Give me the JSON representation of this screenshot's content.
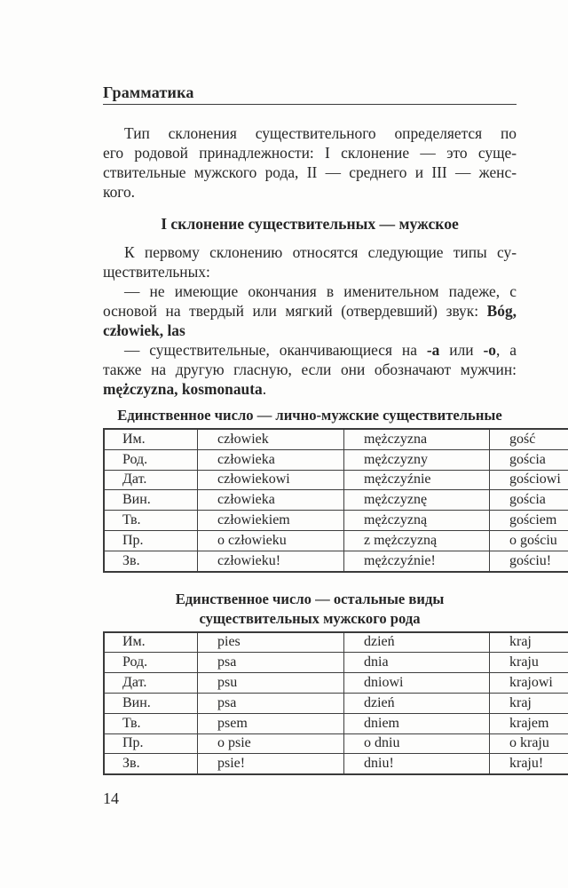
{
  "running_head": "Грамматика",
  "page_number": "14",
  "body": {
    "intro": {
      "indent": true,
      "lines": [
        [
          {
            "t": "Тип склонения существительного определяется по",
            "b": false
          }
        ],
        [
          {
            "t": "его родовой принадлежности: I склонение — это суще-",
            "b": false
          }
        ],
        [
          {
            "t": "ствительные мужского рода, II — среднего и III — женс-",
            "b": false
          }
        ],
        [
          {
            "t": "кого.",
            "b": false
          }
        ]
      ]
    },
    "section_heading": "I склонение существительных — мужское",
    "paragraphs": [
      {
        "indent": true,
        "lines": [
          [
            {
              "t": "К первому склонению относятся следующие типы су-",
              "b": false
            }
          ],
          [
            {
              "t": "ществительных:",
              "b": false
            }
          ]
        ]
      },
      {
        "indent": true,
        "lines": [
          [
            {
              "t": "— не имеющие окончания в именительном падеже, с",
              "b": false
            }
          ],
          [
            {
              "t": "основой на твердый или мягкий (отвердевший) звук: ",
              "b": false
            },
            {
              "t": "Bóg,",
              "b": true
            }
          ],
          [
            {
              "t": "człowiek, las",
              "b": true
            }
          ]
        ]
      },
      {
        "indent": true,
        "lines": [
          [
            {
              "t": "— существительные, оканчивающиеся на ",
              "b": false
            },
            {
              "t": "-a",
              "b": true
            },
            {
              "t": " или ",
              "b": false
            },
            {
              "t": "-o",
              "b": true
            },
            {
              "t": ", а",
              "b": false
            }
          ],
          [
            {
              "t": "также на другую гласную, если они обозначают мужчин:",
              "b": false
            }
          ],
          [
            {
              "t": "mężczyzna, kosmonauta",
              "b": true
            },
            {
              "t": ".",
              "b": false
            }
          ]
        ]
      }
    ]
  },
  "tables": [
    {
      "title_lines": [
        "Единственное число — лично-мужские существительные"
      ],
      "rows": [
        [
          "Им.",
          "człowiek",
          "mężczyzna",
          "gość"
        ],
        [
          "Род.",
          "człowieka",
          "mężczyzny",
          "gościa"
        ],
        [
          "Дат.",
          "człowiekowi",
          "mężczyźnie",
          "gościowi"
        ],
        [
          "Вин.",
          "człowieka",
          "mężczyznę",
          "gościa"
        ],
        [
          "Тв.",
          "człowiekiem",
          "mężczyzną",
          "gościem"
        ],
        [
          "Пр.",
          "o człowieku",
          "z mężczyzną",
          "o gościu"
        ],
        [
          "Зв.",
          "człowieku!",
          "mężczyźnie!",
          "gościu!"
        ]
      ]
    },
    {
      "title_lines": [
        "Единственное число — остальные виды",
        "существительных мужского рода"
      ],
      "rows": [
        [
          "Им.",
          "pies",
          "dzień",
          "kraj"
        ],
        [
          "Род.",
          "psa",
          "dnia",
          "kraju"
        ],
        [
          "Дат.",
          "psu",
          "dniowi",
          "krajowi"
        ],
        [
          "Вин.",
          "psa",
          "dzień",
          "kraj"
        ],
        [
          "Тв.",
          "psem",
          "dniem",
          "krajem"
        ],
        [
          "Пр.",
          "o psie",
          "o dniu",
          "o kraju"
        ],
        [
          "Зв.",
          "psie!",
          "dniu!",
          "kraju!"
        ]
      ]
    }
  ]
}
